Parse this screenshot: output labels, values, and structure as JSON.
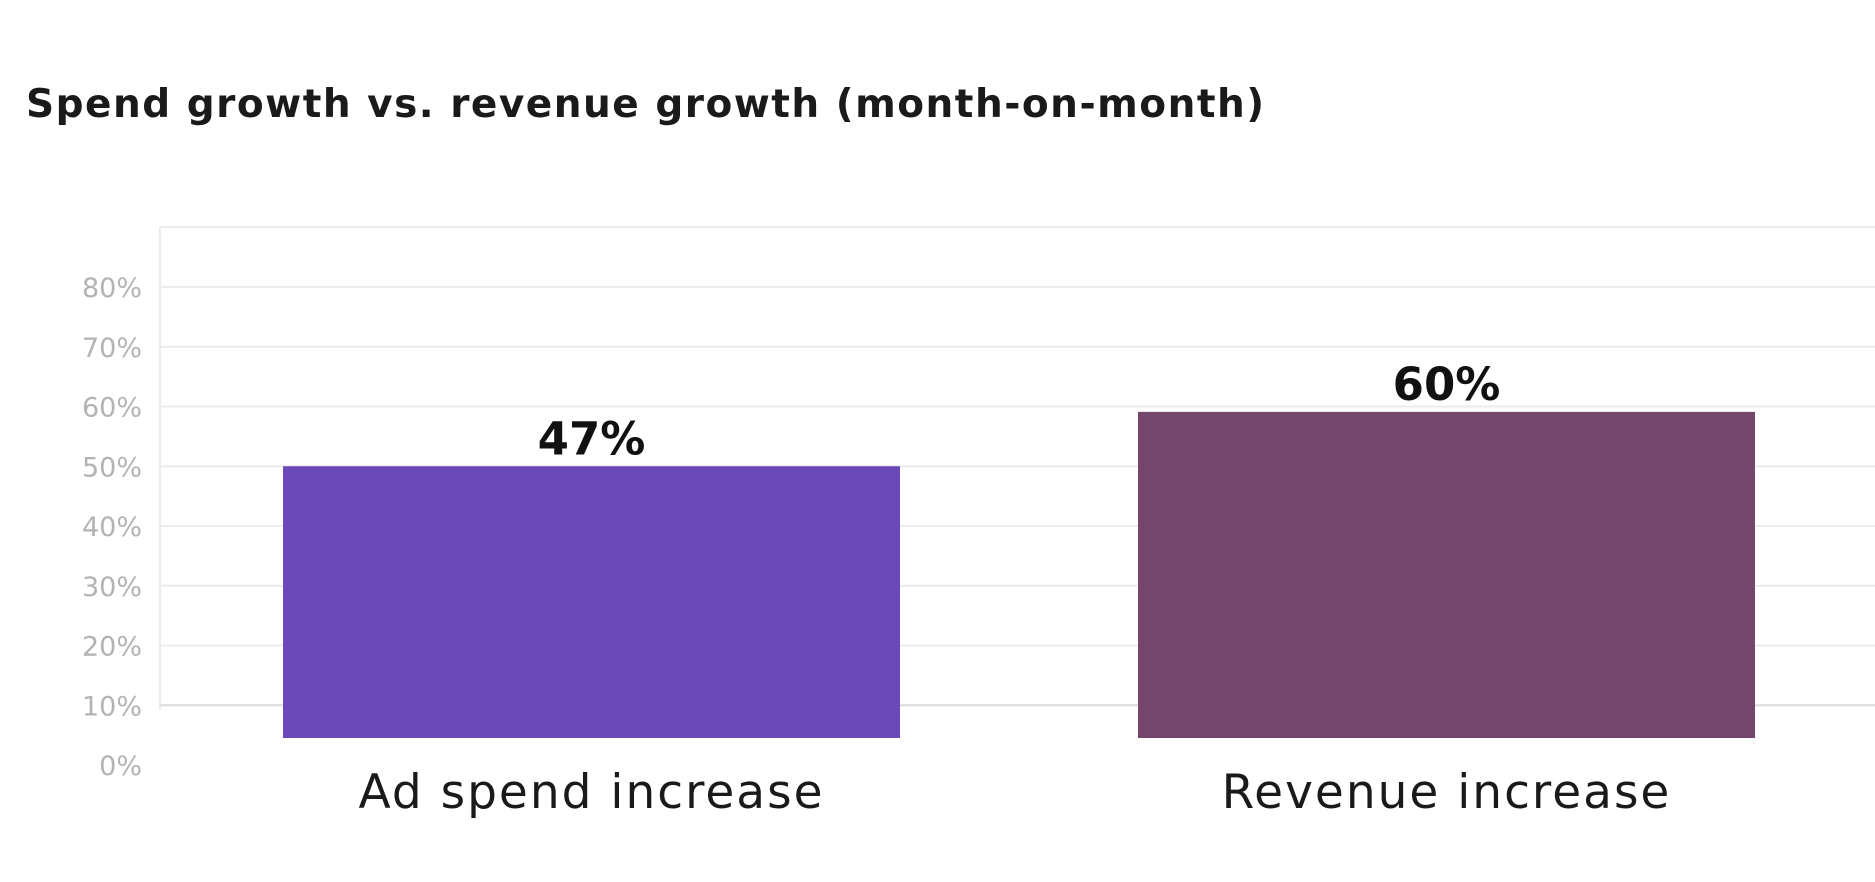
{
  "chart_data": {
    "type": "bar",
    "title": "Spend growth vs. revenue growth (month-on-month)",
    "xlabel": "",
    "ylabel": "",
    "ylim": [
      0,
      80
    ],
    "yticks": [
      0,
      10,
      20,
      30,
      40,
      50,
      60,
      70,
      80
    ],
    "ytick_labels": [
      "0%",
      "10%",
      "20%",
      "30%",
      "40%",
      "50%",
      "60%",
      "70%",
      "80%"
    ],
    "categories": [
      "Ad spend increase",
      "Revenue increase"
    ],
    "values": [
      47,
      60
    ],
    "value_labels": [
      "47%",
      "60%"
    ],
    "colors": [
      "#6c49b8",
      "#74466b"
    ],
    "grid": true,
    "legend": "none"
  }
}
